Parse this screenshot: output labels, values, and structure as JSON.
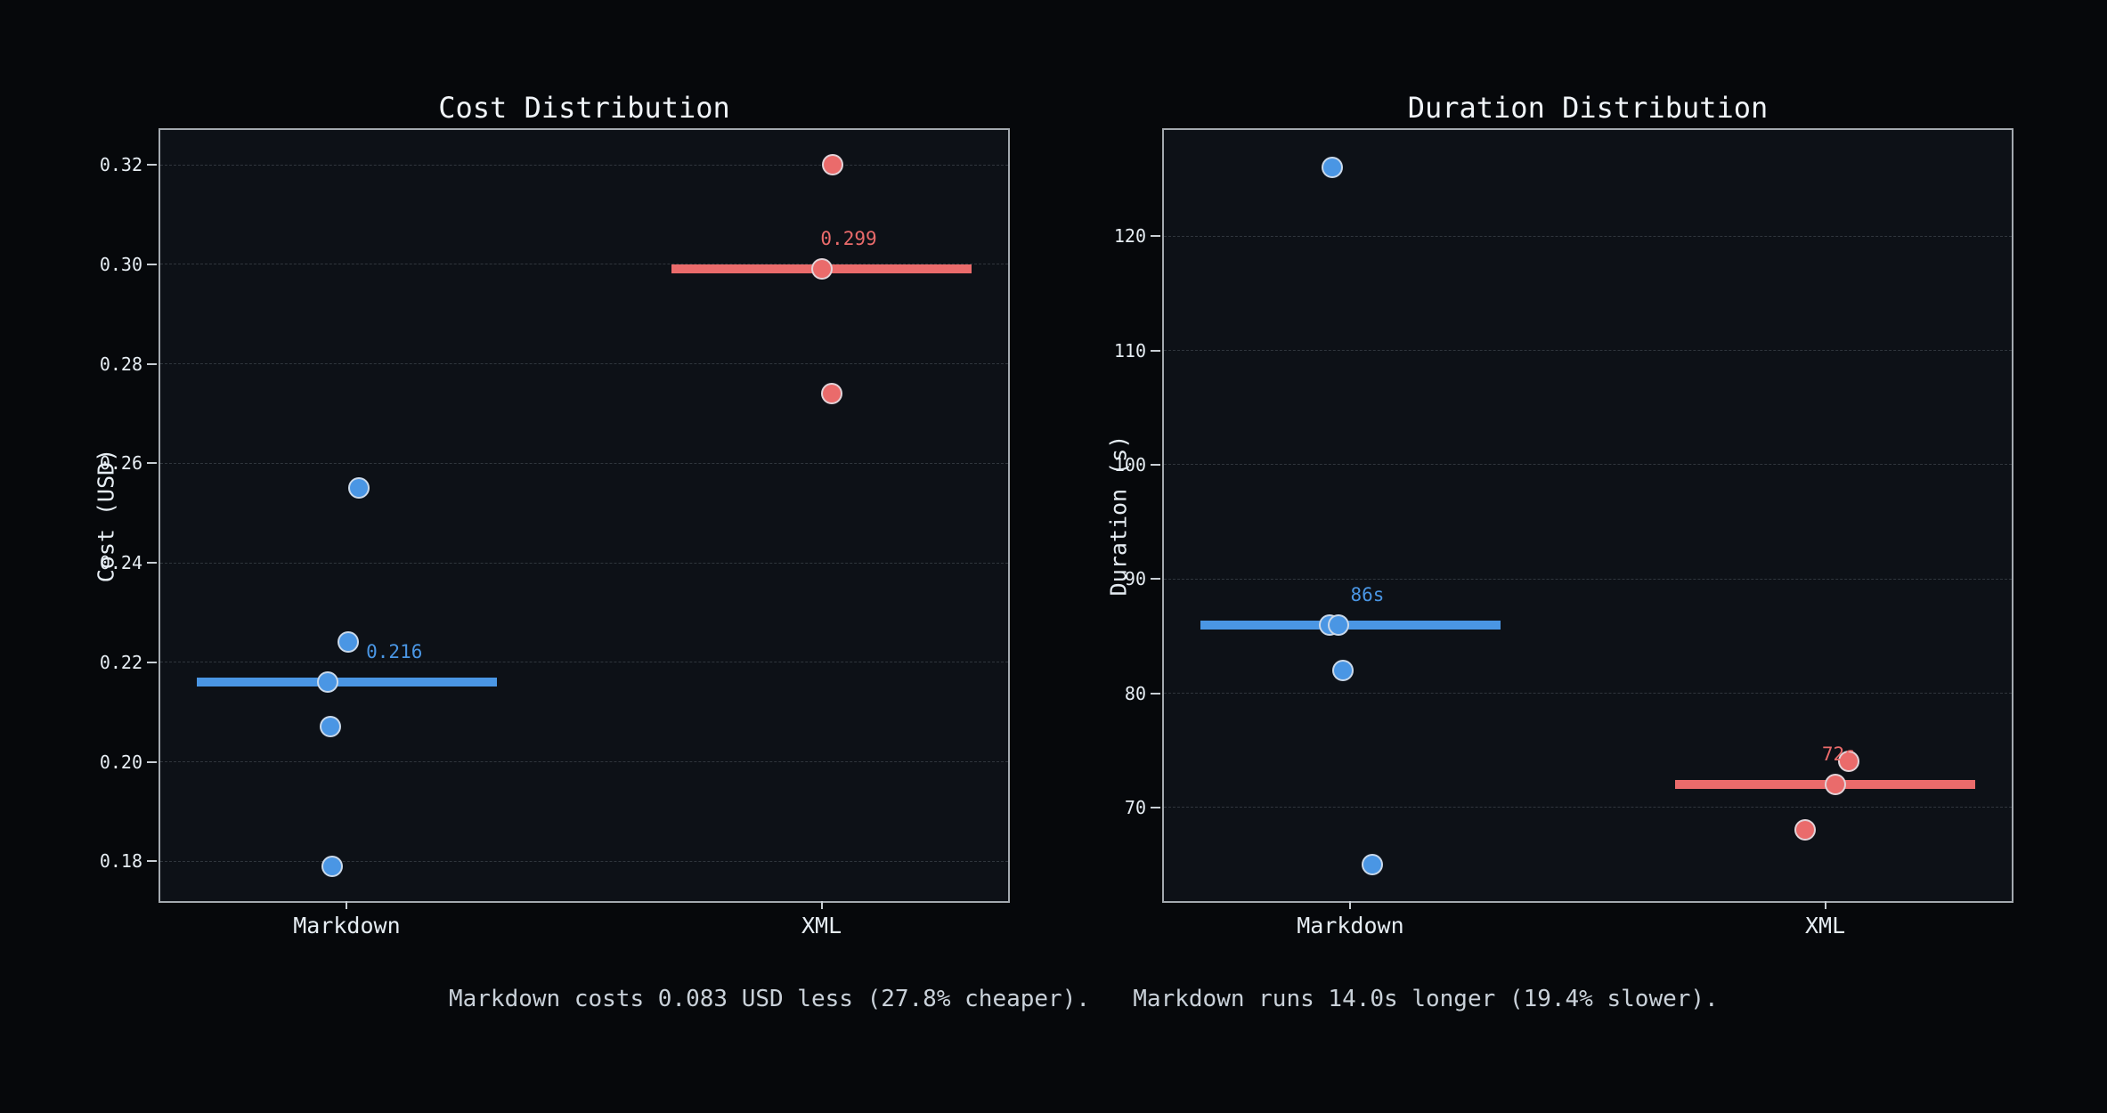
{
  "palette": {
    "blue": "#4a96e4",
    "red": "#ea6b6b",
    "figure_bg": "#06080b",
    "axes_bg": "#0d1117",
    "grid": "#30363d",
    "spine": "#a3a9af",
    "tick_text": "#e6edf3",
    "title_text": "#f0f4f8",
    "footer_text": "#c9d1d9"
  },
  "chart_data": [
    {
      "type": "scatter",
      "title": "Cost Distribution",
      "ylabel": "Cost (USD)",
      "xlabel": "",
      "categories": [
        "Markdown",
        "XML"
      ],
      "ytick_labels": [
        "0.32",
        "0.30",
        "0.28",
        "0.26",
        "0.24",
        "0.22",
        "0.20",
        "0.18"
      ],
      "ytick_values": [
        0.32,
        0.3,
        0.28,
        0.26,
        0.24,
        0.22,
        0.2,
        0.18
      ],
      "ylim": [
        0.172,
        0.327
      ],
      "grid": true,
      "legend": "none",
      "category_x": [
        0.22,
        0.78
      ],
      "line_halfwidth": 0.177,
      "series": [
        {
          "name": "Markdown",
          "color": "blue",
          "median": 0.216,
          "median_label": "0.216",
          "label_xoff": 0.056,
          "points": [
            {
              "v": 0.255,
              "xo": 0.014
            },
            {
              "v": 0.224,
              "xo": 0.002
            },
            {
              "v": 0.216,
              "xo": -0.022
            },
            {
              "v": 0.207,
              "xo": -0.019
            },
            {
              "v": 0.179,
              "xo": -0.017
            }
          ]
        },
        {
          "name": "XML",
          "color": "red",
          "median": 0.299,
          "median_label": "0.299",
          "label_xoff": 0.032,
          "points": [
            {
              "v": 0.32,
              "xo": 0.013
            },
            {
              "v": 0.299,
              "xo": 0.0
            },
            {
              "v": 0.274,
              "xo": 0.012
            }
          ]
        }
      ]
    },
    {
      "type": "scatter",
      "title": "Duration Distribution",
      "ylabel": "Duration (s)",
      "xlabel": "",
      "categories": [
        "Markdown",
        "XML"
      ],
      "ytick_labels": [
        "120",
        "110",
        "100",
        "90",
        "80",
        "70"
      ],
      "ytick_values": [
        120,
        110,
        100,
        90,
        80,
        70
      ],
      "ylim": [
        61.8,
        129.3
      ],
      "grid": true,
      "legend": "none",
      "category_x": [
        0.22,
        0.78
      ],
      "line_halfwidth": 0.177,
      "series": [
        {
          "name": "Markdown",
          "color": "blue",
          "median": 86,
          "median_label": "86s",
          "label_xoff": 0.02,
          "points": [
            {
              "v": 126,
              "xo": -0.021
            },
            {
              "v": 86,
              "xo": -0.025
            },
            {
              "v": 86,
              "xo": -0.014
            },
            {
              "v": 82,
              "xo": -0.009
            },
            {
              "v": 65,
              "xo": 0.026
            }
          ]
        },
        {
          "name": "XML",
          "color": "red",
          "median": 72,
          "median_label": "72s",
          "label_xoff": 0.016,
          "points": [
            {
              "v": 74,
              "xo": 0.028
            },
            {
              "v": 72,
              "xo": 0.012
            },
            {
              "v": 68,
              "xo": -0.024
            }
          ]
        }
      ]
    }
  ],
  "footer": {
    "cost_note": "Markdown costs 0.083 USD less (27.8% cheaper).",
    "duration_note": "Markdown runs 14.0s longer (19.4% slower)."
  }
}
